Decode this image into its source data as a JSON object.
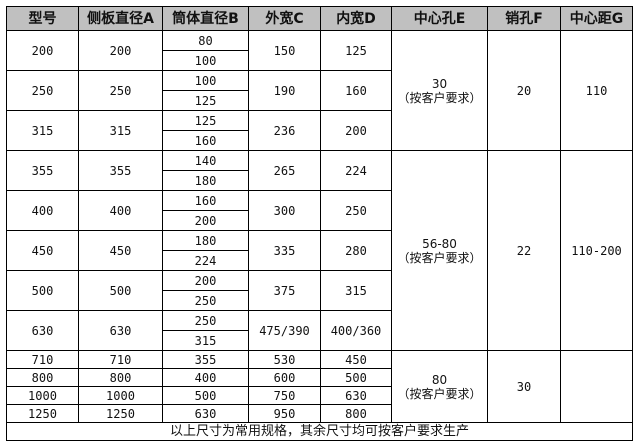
{
  "headers": [
    "型号",
    "侧板直径A",
    "筒体直径B",
    "外宽C",
    "内宽D",
    "中心孔E",
    "销孔F",
    "中心距G"
  ],
  "groups": [
    {
      "center_hole": "30",
      "center_hole_note": "（按客户要求）",
      "pin_hole": "20",
      "center_distance": "110",
      "models": [
        {
          "model": "200",
          "side_dia": "200",
          "drum_dia": [
            "80",
            "100"
          ],
          "outer_width": "150",
          "inner_width": "125"
        },
        {
          "model": "250",
          "side_dia": "250",
          "drum_dia": [
            "100",
            "125"
          ],
          "outer_width": "190",
          "inner_width": "160"
        },
        {
          "model": "315",
          "side_dia": "315",
          "drum_dia": [
            "125",
            "160"
          ],
          "outer_width": "236",
          "inner_width": "200"
        }
      ]
    },
    {
      "center_hole": "56-80",
      "center_hole_note": "（按客户要求）",
      "pin_hole": "22",
      "center_distance": "110-200",
      "models": [
        {
          "model": "355",
          "side_dia": "355",
          "drum_dia": [
            "140",
            "180"
          ],
          "outer_width": "265",
          "inner_width": "224"
        },
        {
          "model": "400",
          "side_dia": "400",
          "drum_dia": [
            "160",
            "200"
          ],
          "outer_width": "300",
          "inner_width": "250"
        },
        {
          "model": "450",
          "side_dia": "450",
          "drum_dia": [
            "180",
            "224"
          ],
          "outer_width": "335",
          "inner_width": "280"
        },
        {
          "model": "500",
          "side_dia": "500",
          "drum_dia": [
            "200",
            "250"
          ],
          "outer_width": "375",
          "inner_width": "315"
        },
        {
          "model": "630",
          "side_dia": "630",
          "drum_dia": [
            "250",
            "315"
          ],
          "outer_width": "475/390",
          "inner_width": "400/360"
        }
      ]
    },
    {
      "center_hole": "80",
      "center_hole_note": "（按客户要求）",
      "pin_hole": "30",
      "center_distance": "",
      "models": [
        {
          "model": "710",
          "side_dia": "710",
          "drum_dia": [
            "355"
          ],
          "outer_width": "530",
          "inner_width": "450"
        },
        {
          "model": "800",
          "side_dia": "800",
          "drum_dia": [
            "400"
          ],
          "outer_width": "600",
          "inner_width": "500"
        },
        {
          "model": "1000",
          "side_dia": "1000",
          "drum_dia": [
            "500"
          ],
          "outer_width": "750",
          "inner_width": "630"
        },
        {
          "model": "1250",
          "side_dia": "1250",
          "drum_dia": [
            "630"
          ],
          "outer_width": "950",
          "inner_width": "800"
        }
      ]
    }
  ],
  "footer": "以上尺寸为常用规格，其余尺寸均可按客户要求生产",
  "colors": {
    "header_bg": "#c0c0c0",
    "border": "#000000"
  }
}
